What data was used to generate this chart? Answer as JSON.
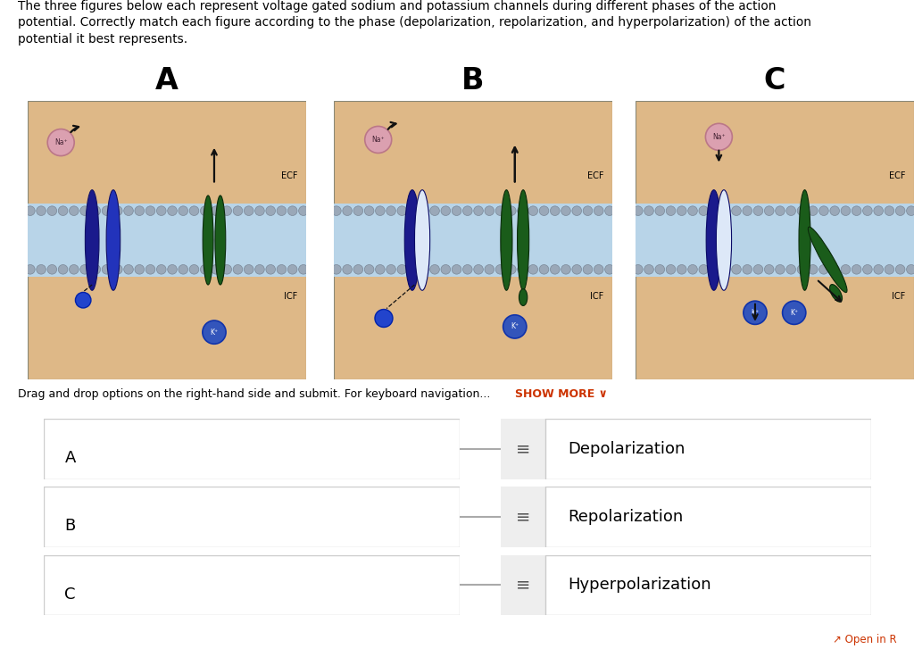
{
  "title_line1": "The three figures below each represent voltage gated sodium and potassium channels during different phases of the action",
  "title_line2": "potential. Correctly match each figure according to the phase (depolarization, repolarization, and hyperpolarization) of the action",
  "title_line3": "potential it best represents.",
  "bg_color": "#ffffff",
  "panel_bg": "#deb887",
  "membrane_light": "#b8d4e8",
  "lipid_color": "#9aa8b8",
  "lipid_edge": "#7a8898",
  "na_dark": "#1a1a8c",
  "na_mid": "#2244dd",
  "na_light": "#e0e0f8",
  "k_dark": "#1a5c1a",
  "k_med": "#2a7a2a",
  "na_ion_fill": "#dba0b0",
  "na_ion_edge": "#bb7788",
  "k_ion_fill": "#3355bb",
  "k_ion_edge": "#1133aa",
  "arrow_col": "#111111",
  "labels": [
    "A",
    "B",
    "C"
  ],
  "drag_text": "Drag and drop options on the right-hand side and submit. For keyboard navigation...",
  "show_more": "SHOW MORE ∨",
  "show_more_color": "#cc3300",
  "left_labels": [
    "A",
    "B",
    "C"
  ],
  "right_labels": [
    "Depolarization",
    "Repolarization",
    "Hyperpolarization"
  ]
}
